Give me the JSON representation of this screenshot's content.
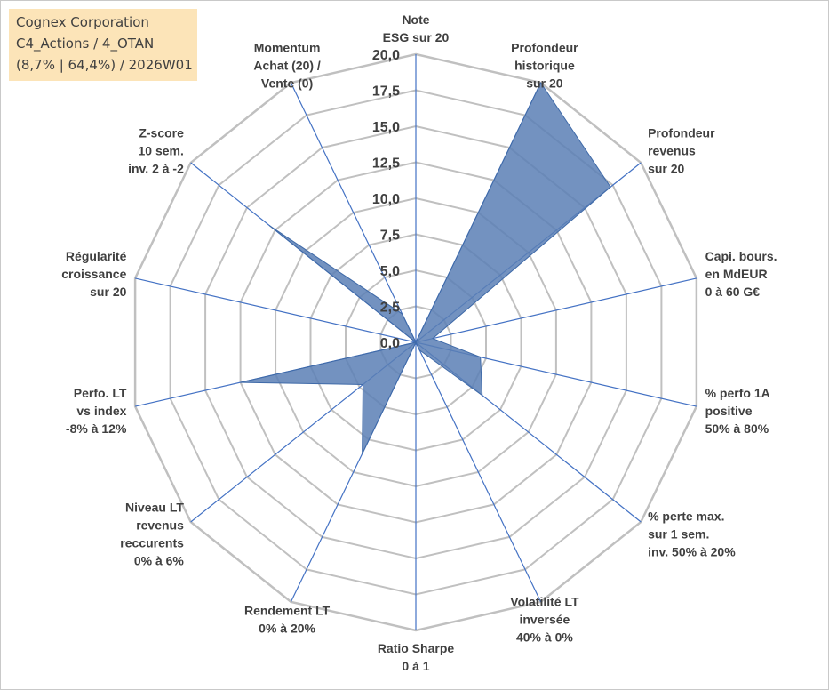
{
  "info_box": {
    "line1": "Cognex Corporation",
    "line2": "C4_Actions / 4_OTAN",
    "line3": "(8,7% | 64,4%) / 2026W01"
  },
  "colors": {
    "grid": "#c0c0c0",
    "spoke": "#4472c4",
    "fill": "#5a7fb5",
    "stroke": "#3f6aa8",
    "text": "#404040"
  },
  "chart_data": {
    "type": "radar",
    "rmin": 0,
    "rmax": 20,
    "ticks": [
      "0,0",
      "2,5",
      "5,0",
      "7,5",
      "10,0",
      "12,5",
      "15,0",
      "17,5",
      "20,0"
    ],
    "tick_values": [
      0,
      2.5,
      5,
      7.5,
      10,
      12.5,
      15,
      17.5,
      20
    ],
    "grid": true,
    "axes": [
      {
        "label": [
          "Note",
          "ESG sur 20"
        ],
        "value": 0
      },
      {
        "label": [
          "Profondeur",
          "historique",
          "sur 20"
        ],
        "value": 20
      },
      {
        "label": [
          "Profondeur",
          "revenus",
          "sur 20"
        ],
        "value": 17.3
      },
      {
        "label": [
          "Capi. bours.",
          "en MdEUR",
          "0 à 60 G€"
        ],
        "value": 1.2
      },
      {
        "label": [
          "% perfo 1A",
          "positive",
          "50% à 80%"
        ],
        "value": 4.6
      },
      {
        "label": [
          "% perte max.",
          "sur 1 sem.",
          "inv. 50% à 20%"
        ],
        "value": 5.9
      },
      {
        "label": [
          "Volatilité LT",
          "inversée",
          "40% à 0%"
        ],
        "value": 0.6
      },
      {
        "label": [
          "Ratio Sharpe",
          "0 à 1"
        ],
        "value": 0
      },
      {
        "label": [
          "Rendement LT",
          "0% à 20%"
        ],
        "value": 8.6
      },
      {
        "label": [
          "Niveau LT",
          "revenus",
          "reccurents",
          "0% à 6%"
        ],
        "value": 4.7
      },
      {
        "label": [
          "Perfo. LT",
          "vs index",
          "-8% à 12%"
        ],
        "value": 12.5
      },
      {
        "label": [
          "Régularité",
          "croissance",
          "sur 20"
        ],
        "value": 0
      },
      {
        "label": [
          "Z-score",
          "10 sem.",
          "inv. 2 à -2"
        ],
        "value": 13.0
      },
      {
        "label": [
          "Momentum",
          "Achat (20) /",
          "Vente (0)"
        ],
        "value": 2.2
      }
    ]
  }
}
